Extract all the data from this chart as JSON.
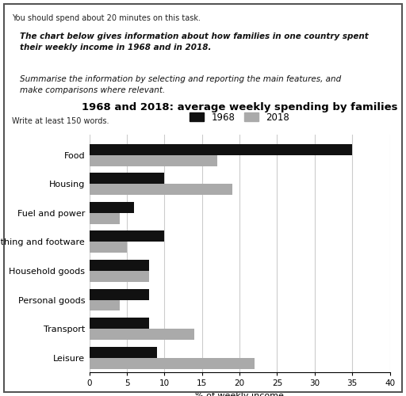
{
  "title": "1968 and 2018: average weekly spending by families",
  "xlabel": "% of weekly income",
  "categories": [
    "Food",
    "Housing",
    "Fuel and power",
    "Clothing and footware",
    "Household goods",
    "Personal goods",
    "Transport",
    "Leisure"
  ],
  "values_1968": [
    35,
    10,
    6,
    10,
    8,
    8,
    8,
    9
  ],
  "values_2018": [
    17,
    19,
    4,
    5,
    8,
    4,
    14,
    22
  ],
  "color_1968": "#111111",
  "color_2018": "#aaaaaa",
  "legend_labels": [
    "1968",
    "2018"
  ],
  "xlim": [
    0,
    40
  ],
  "xticks": [
    0,
    5,
    10,
    15,
    20,
    25,
    30,
    35,
    40
  ],
  "bar_height": 0.38,
  "top_text": "You should spend about 20 minutes on this task.",
  "box_text_bold": "The chart below gives information about how families in one country spent\ntheir weekly income in 1968 and in 2018.",
  "box_text_normal": "Summarise the information by selecting and reporting the main features, and\nmake comparisons where relevant.",
  "bottom_text": "Write at least 150 words.",
  "fig_bg": "#ffffff",
  "box_border_color": "#333333",
  "grid_color": "#cccccc",
  "outer_border_color": "#555555"
}
